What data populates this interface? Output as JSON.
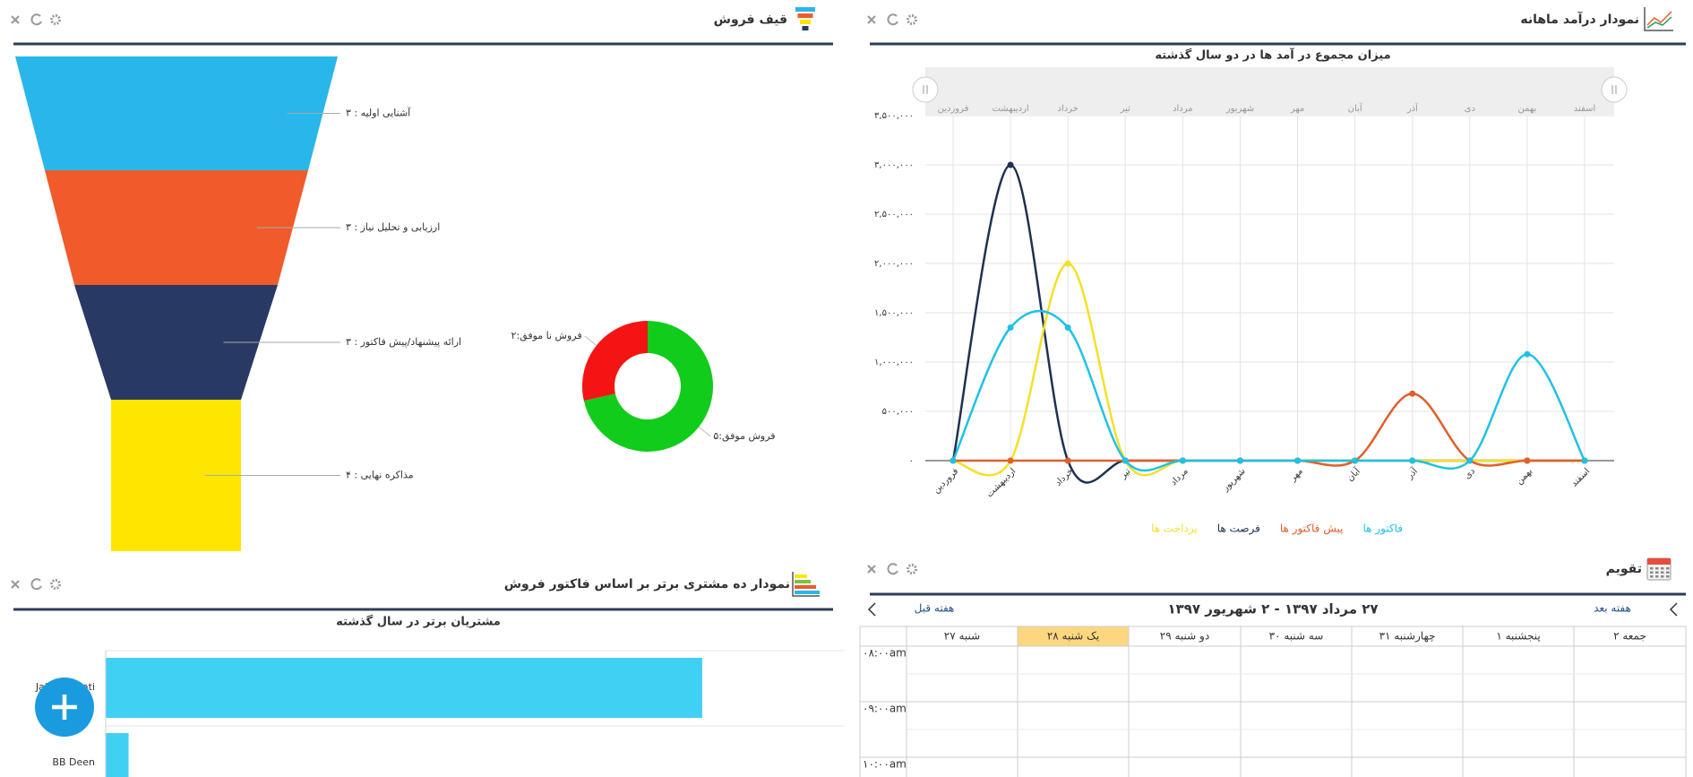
{
  "funnel_panel": {
    "title": "قیف فروش"
  },
  "revenue_panel": {
    "title": "نمودار درآمد ماهانه"
  },
  "customers_panel": {
    "title": "نمودار ده مشتری برتر بر اساس فاکتور فروش"
  },
  "calendar": {
    "title": "تقویم",
    "range": "۲۷ مرداد ۱۳۹۷ - ۲ شهریور ۱۳۹۷",
    "prev": "هفته قبل",
    "next": "هفته بعد",
    "days": [
      "شنبه ۲۷",
      "یک شنبه ۲۸",
      "دو شنبه ۲۹",
      "سه شنبه ۳۰",
      "چهارشنبه ۳۱",
      "پنجشنبه ۱",
      "جمعه ۲"
    ],
    "times": [
      "۰۸:۰۰am",
      "۰۹:۰۰am",
      "۱۰:۰۰am"
    ]
  },
  "chart_data": [
    {
      "type": "funnel",
      "values": [
        3,
        3,
        3,
        4
      ],
      "value_labels": [
        "آشنایی اولیه : ۳",
        "ارزیابی و تحلیل نیاز : ۳",
        "ارائه پیشنهاد/پیش فاکتور : ۳",
        "مذاکره نهایی : ۴"
      ],
      "colors": [
        "#29b6ea",
        "#f15a2b",
        "#283a63",
        "#ffe600"
      ]
    },
    {
      "type": "pie",
      "donut": true,
      "values": [
        5,
        2
      ],
      "value_labels": [
        "فروش موفق:۵",
        "فروش نا موفق:۲"
      ],
      "colors": [
        "#11cc1a",
        "#f41414"
      ]
    },
    {
      "type": "line",
      "smooth": true,
      "grid": true,
      "title": "میزان مجموع در آمد ها در دو سال گذشته",
      "categories": [
        "فروردین",
        "اردیبهشت",
        "خرداد",
        "تیر",
        "مرداد",
        "شهریور",
        "مهر",
        "آبان",
        "آذر",
        "دی",
        "بهمن",
        "اسفند"
      ],
      "series": [
        {
          "name": "فاکتور ها",
          "color": "#1ec2e6",
          "values": [
            0,
            1350000,
            1350000,
            0,
            0,
            0,
            0,
            0,
            0,
            0,
            1080000,
            0
          ]
        },
        {
          "name": "پیش فاکتور ها",
          "color": "#e0602a",
          "values": [
            0,
            0,
            0,
            0,
            0,
            0,
            0,
            0,
            680000,
            0,
            0,
            0
          ]
        },
        {
          "name": "فرصت ها",
          "color": "#1f3150",
          "values": [
            0,
            3000000,
            0,
            0,
            0,
            0,
            0,
            0,
            0,
            0,
            0,
            0
          ]
        },
        {
          "name": "پرداخت ها",
          "color": "#f5e027",
          "values": [
            0,
            0,
            2000000,
            0,
            0,
            0,
            0,
            0,
            0,
            0,
            0,
            0
          ]
        }
      ],
      "ylim": [
        0,
        3500000
      ],
      "yticks": [
        {
          "value": 0,
          "label": "۰"
        },
        {
          "value": 500000,
          "label": "۵۰۰,۰۰۰"
        },
        {
          "value": 1000000,
          "label": "۱,۰۰۰,۰۰۰"
        },
        {
          "value": 1500000,
          "label": "۱,۵۰۰,۰۰۰"
        },
        {
          "value": 2000000,
          "label": "۲,۰۰۰,۰۰۰"
        },
        {
          "value": 2500000,
          "label": "۲,۵۰۰,۰۰۰"
        },
        {
          "value": 3000000,
          "label": "۳,۰۰۰,۰۰۰"
        },
        {
          "value": 3500000,
          "label": "۳,۵۰۰,۰۰۰"
        }
      ]
    },
    {
      "type": "bar",
      "orientation": "horizontal",
      "title": "مشتریان برتر در سال گذشته",
      "categories": [
        "Jalal Nemati",
        "BB Deen"
      ],
      "values": [
        755,
        29
      ],
      "xlim": [
        0,
        1000
      ],
      "color": "#40d0f3"
    }
  ]
}
